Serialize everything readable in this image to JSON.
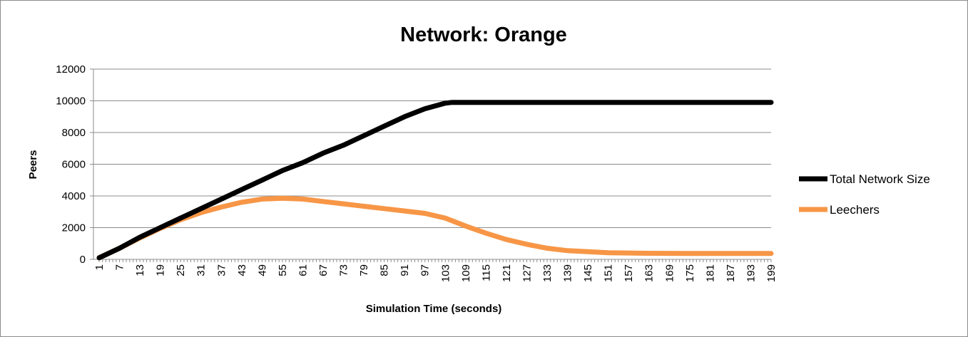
{
  "chart_data": {
    "type": "line",
    "title": "Network: Orange",
    "xlabel": "Simulation Time (seconds)",
    "ylabel": "Peers",
    "ylim": [
      0,
      12000
    ],
    "yticks": [
      0,
      2000,
      4000,
      6000,
      8000,
      10000,
      12000
    ],
    "xlim": [
      1,
      199
    ],
    "xticks": [
      1,
      7,
      13,
      19,
      25,
      31,
      37,
      43,
      49,
      55,
      61,
      67,
      73,
      79,
      85,
      91,
      97,
      103,
      109,
      115,
      121,
      127,
      133,
      139,
      145,
      151,
      157,
      163,
      169,
      175,
      181,
      187,
      193,
      199
    ],
    "grid": "horizontal",
    "legend_position": "right",
    "series": [
      {
        "name": "Total Network Size",
        "color": "#000000",
        "points": [
          [
            1,
            100
          ],
          [
            7,
            700
          ],
          [
            13,
            1400
          ],
          [
            19,
            2000
          ],
          [
            25,
            2600
          ],
          [
            31,
            3200
          ],
          [
            37,
            3800
          ],
          [
            43,
            4400
          ],
          [
            49,
            5000
          ],
          [
            55,
            5600
          ],
          [
            61,
            6100
          ],
          [
            67,
            6700
          ],
          [
            73,
            7200
          ],
          [
            79,
            7800
          ],
          [
            85,
            8400
          ],
          [
            91,
            9000
          ],
          [
            97,
            9500
          ],
          [
            103,
            9850
          ],
          [
            105,
            9900
          ],
          [
            199,
            9900
          ]
        ]
      },
      {
        "name": "Leechers",
        "color": "#f79646",
        "points": [
          [
            1,
            100
          ],
          [
            7,
            700
          ],
          [
            13,
            1350
          ],
          [
            19,
            1950
          ],
          [
            25,
            2500
          ],
          [
            31,
            2950
          ],
          [
            37,
            3300
          ],
          [
            43,
            3600
          ],
          [
            49,
            3800
          ],
          [
            55,
            3850
          ],
          [
            61,
            3800
          ],
          [
            67,
            3650
          ],
          [
            73,
            3500
          ],
          [
            79,
            3350
          ],
          [
            85,
            3200
          ],
          [
            91,
            3050
          ],
          [
            97,
            2900
          ],
          [
            103,
            2600
          ],
          [
            109,
            2100
          ],
          [
            115,
            1650
          ],
          [
            121,
            1250
          ],
          [
            127,
            950
          ],
          [
            133,
            700
          ],
          [
            139,
            550
          ],
          [
            145,
            480
          ],
          [
            151,
            420
          ],
          [
            157,
            400
          ],
          [
            163,
            380
          ],
          [
            175,
            370
          ],
          [
            199,
            370
          ]
        ]
      }
    ]
  }
}
